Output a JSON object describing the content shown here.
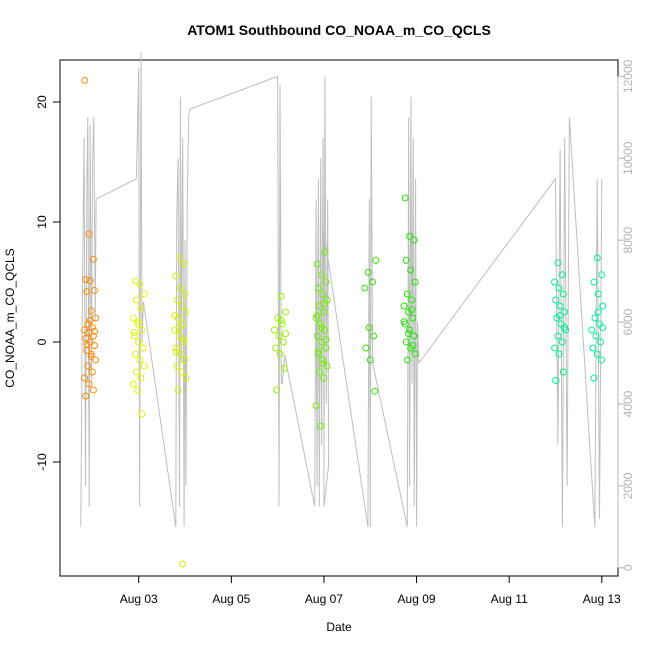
{
  "chart_data": {
    "type": "scatter",
    "title": "ATOM1 Southbound CO_NOAA_m_CO_QCLS",
    "xlabel": "Date",
    "ylabel": "CO_NOAA_m_CO_QCLS",
    "x_tick_labels": [
      "Aug 03",
      "Aug 05",
      "Aug 07",
      "Aug 09",
      "Aug 11",
      "Aug 13"
    ],
    "y_ticks": [
      -10,
      0,
      10,
      20
    ],
    "y_tick_labels": [
      "-10",
      "0",
      "10",
      "20"
    ],
    "y_right_ticks": [
      0,
      2000,
      4000,
      6000,
      8000,
      10000,
      12000
    ],
    "y_right_tick_labels": [
      "0",
      "2000",
      "4000",
      "6000",
      "8000",
      "10000",
      "12000"
    ],
    "xlim_days": [
      1.3,
      13.35
    ],
    "ylim": [
      -19.5,
      23.5
    ],
    "y_right_lim": [
      -200,
      12400
    ],
    "grid": false,
    "series": [
      {
        "name": "",
        "color": "#FF8C00",
        "x_day": 1.95,
        "values": [
          21.8,
          9.0,
          6.9,
          5.2,
          5.1,
          4.3,
          4.2,
          2.6,
          2.0,
          1.5,
          1.2,
          1.0,
          0.8,
          0.5,
          0.3,
          0.0,
          -0.3,
          -0.7,
          -1.0,
          -1.5,
          -2.0,
          -2.5,
          -3.0,
          -3.5,
          -4.0,
          -4.5,
          1.8,
          0.9,
          -0.2,
          -1.2
        ]
      },
      {
        "name": "",
        "color": "#E6F200",
        "x_day": 3.0,
        "values": [
          5.1,
          4.8,
          4.0,
          3.5,
          2.8,
          2.0,
          1.5,
          1.0,
          0.5,
          0.0,
          -0.5,
          -1.0,
          -1.5,
          -2.0,
          -2.5,
          -3.0,
          -3.5,
          -4.0,
          -6.0,
          0.8,
          1.7
        ]
      },
      {
        "name": "",
        "color": "#D8F200",
        "x_day": 3.9,
        "values": [
          7.0,
          6.5,
          5.5,
          4.5,
          4.0,
          3.5,
          3.0,
          2.5,
          2.0,
          1.5,
          1.0,
          0.5,
          0.0,
          -0.5,
          -1.0,
          -1.5,
          -2.0,
          -2.5,
          -3.0,
          -4.0,
          -18.5,
          2.2,
          1.2,
          0.2,
          -0.8
        ]
      },
      {
        "name": "",
        "color": "#96F200",
        "x_day": 6.05,
        "values": [
          3.8,
          2.5,
          2.0,
          1.5,
          1.0,
          0.5,
          0.0,
          -0.5,
          -1.0,
          -2.2,
          -4.0,
          1.8,
          0.7
        ]
      },
      {
        "name": "",
        "color": "#6EF200",
        "x_day": 6.95,
        "values": [
          7.5,
          6.5,
          5.6,
          5.0,
          4.5,
          4.0,
          3.5,
          3.0,
          2.5,
          2.0,
          1.5,
          1.0,
          0.5,
          0.0,
          -0.5,
          -1.0,
          -1.5,
          -2.0,
          -2.5,
          -3.0,
          -5.3,
          -7.0,
          3.2,
          2.2,
          1.2,
          0.2,
          -0.8,
          -1.8
        ]
      },
      {
        "name": "",
        "color": "#32E600",
        "x_day": 8.0,
        "values": [
          6.8,
          5.8,
          5.0,
          4.5,
          1.2,
          0.5,
          -0.5,
          -1.5,
          -4.1
        ]
      },
      {
        "name": "",
        "color": "#1EE600",
        "x_day": 8.85,
        "values": [
          12.0,
          8.8,
          8.5,
          6.8,
          6.0,
          5.0,
          4.0,
          3.5,
          3.0,
          2.5,
          2.0,
          1.5,
          1.0,
          0.5,
          0.0,
          -0.5,
          -1.0,
          -1.5,
          2.7,
          1.7,
          0.7,
          -0.3
        ]
      },
      {
        "name": "",
        "color": "#00F096",
        "x_day": 12.1,
        "values": [
          6.6,
          5.6,
          5.0,
          4.5,
          4.0,
          3.5,
          3.0,
          2.5,
          2.0,
          1.5,
          1.0,
          0.5,
          0.0,
          -0.5,
          -1.0,
          -2.5,
          -3.2,
          2.2,
          1.2
        ]
      },
      {
        "name": "",
        "color": "#00F0A0",
        "x_day": 12.9,
        "values": [
          7.0,
          5.6,
          5.0,
          4.0,
          3.0,
          2.0,
          1.5,
          1.0,
          0.5,
          0.0,
          -0.5,
          -1.0,
          -1.5,
          -3.0,
          2.5,
          1.2
        ]
      }
    ],
    "secondary_line": {
      "color": "#bebebe",
      "x_day": [
        1.75,
        1.78,
        1.8,
        1.82,
        1.85,
        1.88,
        1.9,
        1.93,
        1.95,
        1.98,
        2.0,
        2.03,
        2.06,
        2.08,
        2.95,
        3.0,
        3.02,
        3.05,
        3.07,
        3.1,
        3.8,
        3.82,
        3.85,
        3.88,
        3.9,
        3.92,
        3.95,
        3.98,
        4.0,
        4.02,
        4.05,
        4.08,
        4.1,
        6.0,
        6.03,
        6.05,
        6.08,
        6.1,
        6.15,
        6.8,
        6.83,
        6.85,
        6.88,
        6.9,
        6.93,
        6.95,
        6.98,
        7.0,
        7.02,
        7.05,
        7.08,
        7.1,
        7.0,
        7.0,
        7.95,
        7.98,
        8.0,
        8.02,
        8.05,
        8.8,
        8.83,
        8.85,
        8.88,
        8.9,
        8.93,
        8.95,
        8.98,
        9.0,
        9.02,
        9.05,
        12.0,
        12.05,
        12.1,
        12.15,
        12.2,
        12.25,
        12.3,
        12.85,
        12.9,
        12.95,
        13.0
      ],
      "y_right": [
        1000,
        6000,
        8500,
        10500,
        2000,
        9500,
        11000,
        1500,
        10800,
        4500,
        9800,
        11000,
        6000,
        9000,
        9500,
        12200,
        1500,
        12600,
        5500,
        6500,
        1000,
        8500,
        10000,
        1500,
        11500,
        5000,
        10500,
        1000,
        8000,
        2000,
        9000,
        11000,
        11200,
        12000,
        1500,
        11800,
        4500,
        4500,
        5200,
        1500,
        9000,
        2000,
        9500,
        1500,
        10000,
        3000,
        10500,
        2500,
        12000,
        4000,
        9000,
        2500,
        1500,
        8200,
        1000,
        9000,
        1000,
        11500,
        5000,
        1000,
        11000,
        2000,
        11500,
        4500,
        10500,
        1500,
        9500,
        1000,
        6000,
        5000,
        9500,
        3000,
        10200,
        1000,
        10500,
        2000,
        11000,
        1000,
        9500,
        1200,
        9500
      ]
    }
  }
}
